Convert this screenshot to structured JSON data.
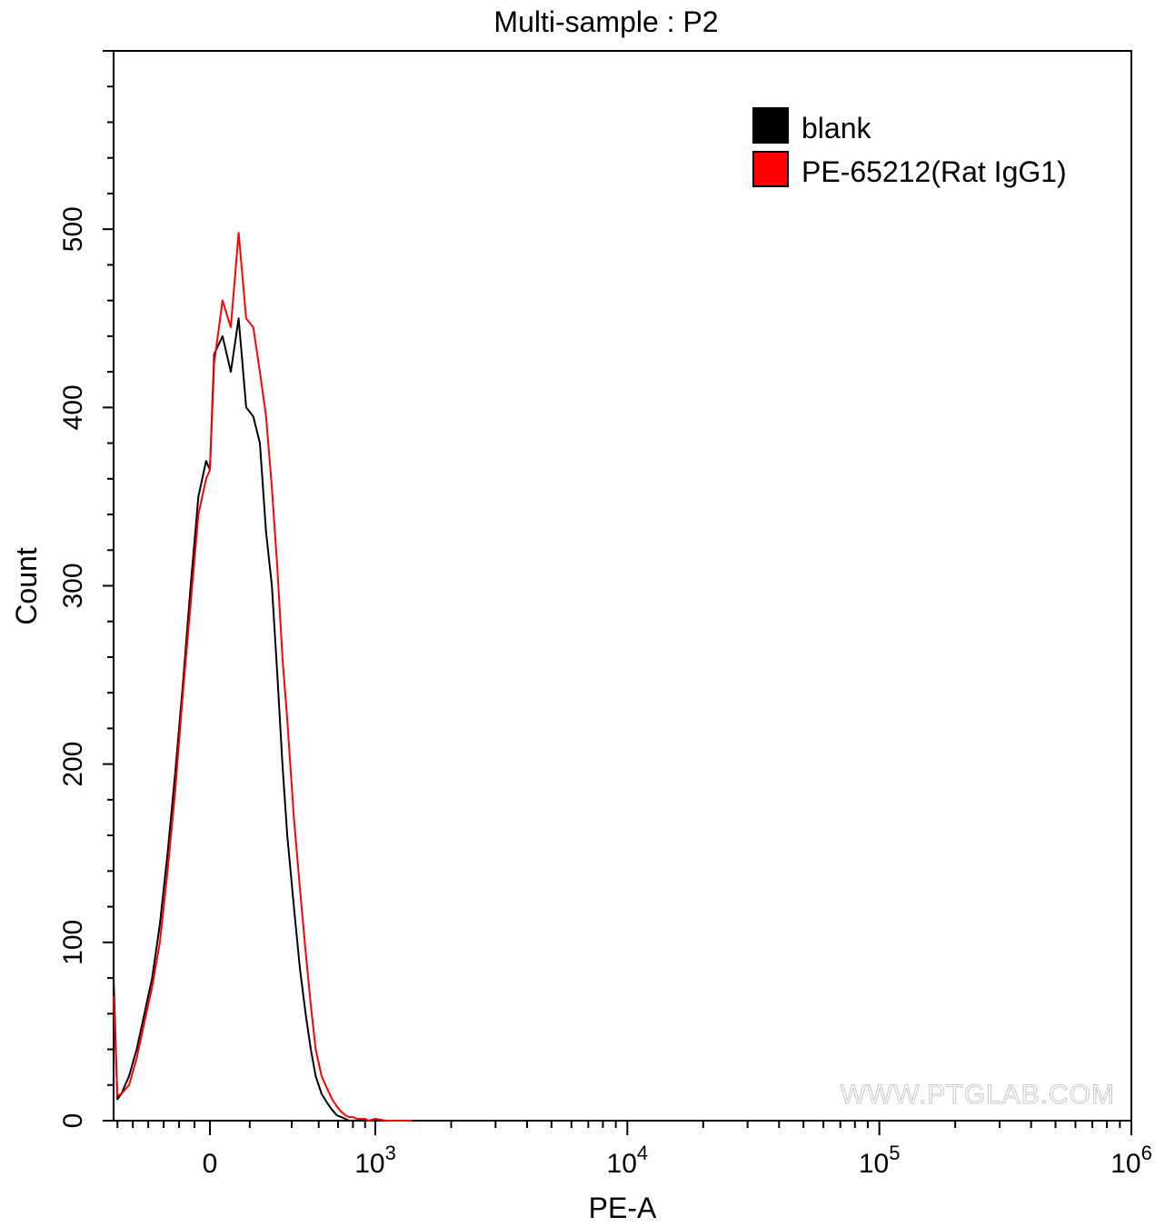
{
  "chart_data": {
    "type": "line",
    "title": "Multi-sample : P2",
    "xlabel": "PE-A",
    "ylabel": "Count",
    "xscale": "biexponential",
    "xlim": [
      -250,
      1000000
    ],
    "ylim": [
      0,
      600
    ],
    "grid": false,
    "legend_position": "top-right",
    "watermark": "WWW.PTGLAB.COM",
    "x_ticks": [
      {
        "label": "0",
        "value": 0
      },
      {
        "label": "10",
        "sup": "3",
        "value": 1000
      },
      {
        "label": "10",
        "sup": "4",
        "value": 10000
      },
      {
        "label": "10",
        "sup": "5",
        "value": 100000
      },
      {
        "label": "10",
        "sup": "6",
        "value": 1000000
      }
    ],
    "y_ticks": [
      0,
      100,
      200,
      300,
      400,
      500
    ],
    "series": [
      {
        "name": "blank",
        "color": "#000000",
        "x": [
          -250,
          -240,
          -230,
          -210,
          -190,
          -170,
          -150,
          -130,
          -110,
          -90,
          -70,
          -50,
          -30,
          -10,
          0,
          10,
          30,
          50,
          70,
          90,
          110,
          130,
          150,
          170,
          190,
          210,
          230,
          260,
          290,
          320,
          350,
          380,
          420,
          460,
          500,
          540,
          580,
          620,
          660,
          700,
          750,
          800,
          850,
          900
        ],
        "y": [
          80,
          12,
          15,
          25,
          40,
          60,
          80,
          110,
          150,
          195,
          245,
          300,
          350,
          370,
          365,
          430,
          440,
          420,
          450,
          400,
          395,
          380,
          330,
          300,
          250,
          200,
          160,
          120,
          85,
          60,
          40,
          25,
          15,
          10,
          6,
          3,
          2,
          1,
          0,
          0,
          0,
          0,
          0,
          0
        ]
      },
      {
        "name": "PE-65212(Rat IgG1)",
        "color": "#ff0000",
        "x": [
          -250,
          -240,
          -230,
          -210,
          -190,
          -170,
          -150,
          -130,
          -110,
          -90,
          -70,
          -50,
          -30,
          -10,
          0,
          10,
          30,
          50,
          70,
          90,
          110,
          130,
          150,
          170,
          190,
          210,
          230,
          260,
          290,
          320,
          350,
          380,
          420,
          460,
          500,
          540,
          580,
          620,
          660,
          700,
          750,
          800,
          850,
          900,
          1000,
          1100,
          1200,
          1400
        ],
        "y": [
          70,
          14,
          15,
          20,
          35,
          55,
          75,
          100,
          140,
          185,
          240,
          290,
          340,
          360,
          365,
          425,
          460,
          445,
          498,
          450,
          445,
          420,
          395,
          355,
          310,
          260,
          225,
          170,
          130,
          95,
          65,
          40,
          25,
          18,
          12,
          8,
          5,
          3,
          2,
          2,
          1,
          1,
          1,
          0,
          1,
          0,
          0,
          0
        ]
      }
    ]
  }
}
